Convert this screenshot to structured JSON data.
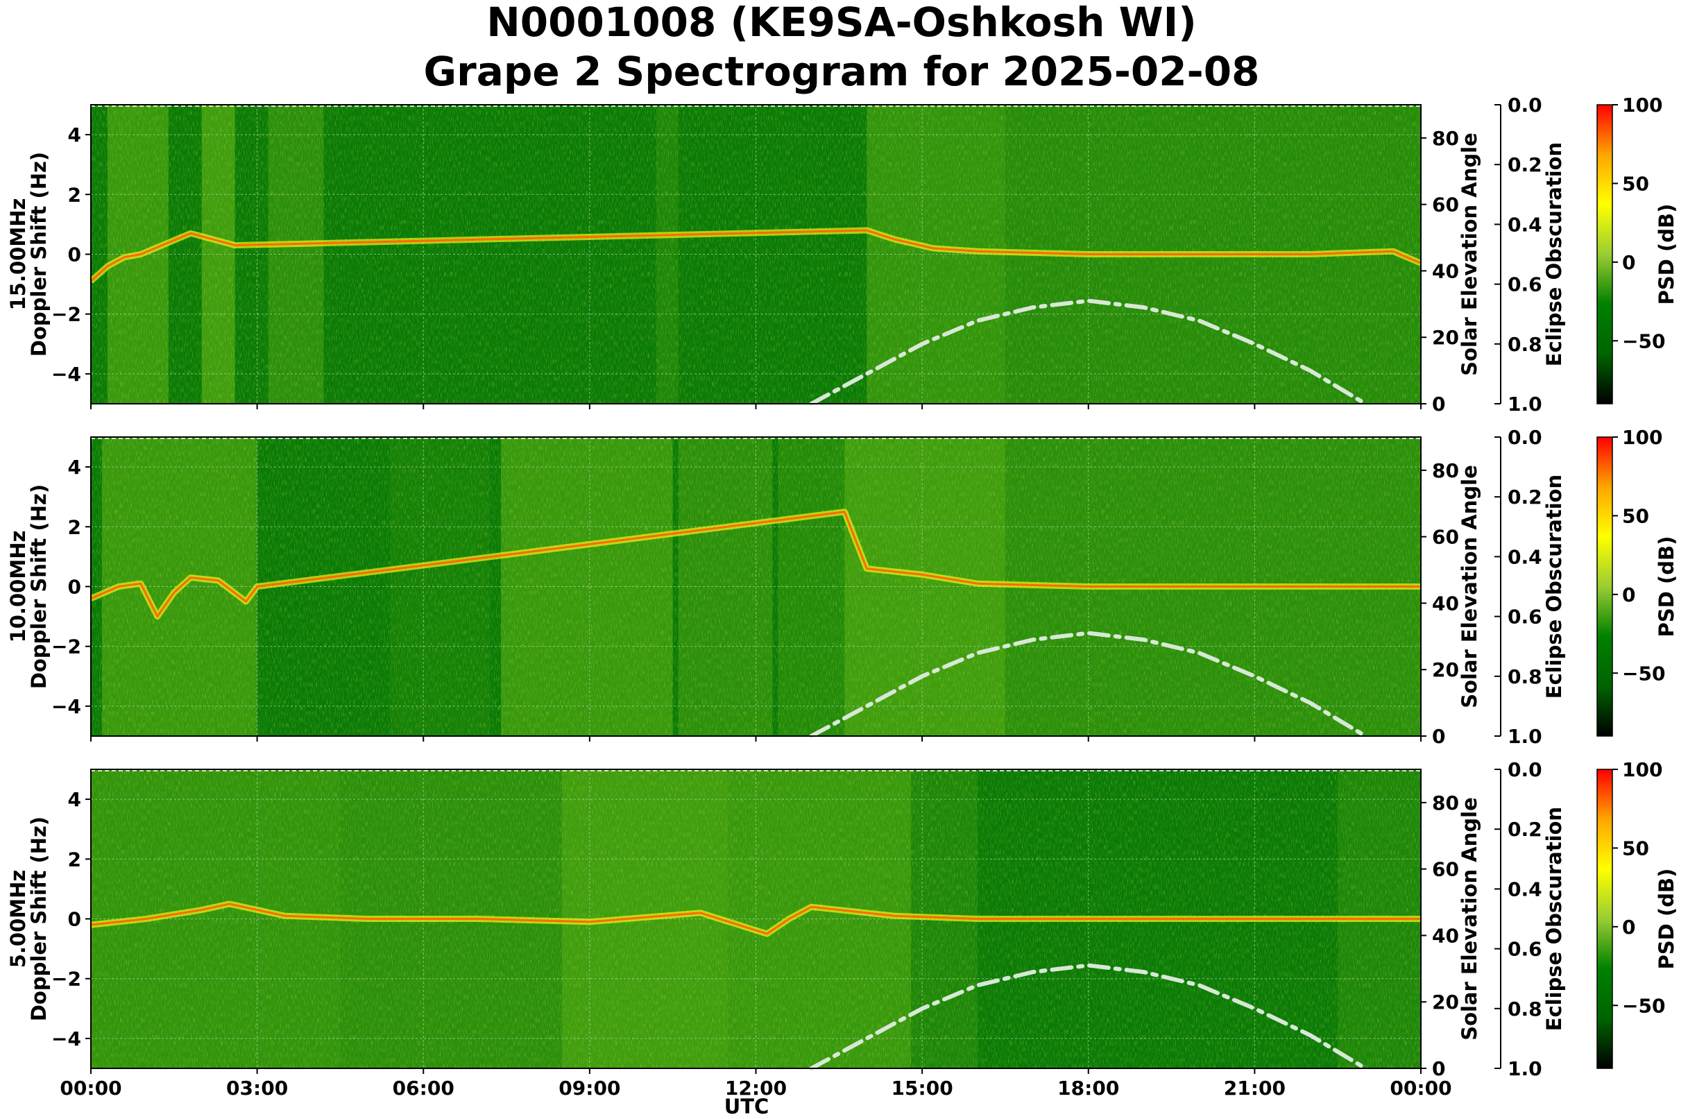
{
  "title": {
    "line1": "N0001008 (KE9SA-Oshkosh WI)",
    "line2": "Grape 2 Spectrogram for 2025-02-08"
  },
  "x_axis": {
    "label": "UTC",
    "ticks": [
      "00:00",
      "03:00",
      "06:00",
      "09:00",
      "12:00",
      "15:00",
      "18:00",
      "21:00",
      "00:00"
    ]
  },
  "y_left_ticks": [
    "4",
    "2",
    "0",
    "−2",
    "−4"
  ],
  "y_right_label": "Solar Elevation Angle",
  "y_right_ticks": [
    "80",
    "60",
    "40",
    "20",
    "0"
  ],
  "eclipse": {
    "label": "Eclipse Obscuration",
    "ticks": [
      "0.0",
      "0.2",
      "0.4",
      "0.6",
      "0.8",
      "1.0"
    ]
  },
  "colorbar": {
    "label": "PSD (dB)",
    "ticks": [
      "100",
      "50",
      "0",
      "−50"
    ],
    "stops": [
      "#000000",
      "#006400",
      "#008000",
      "#9acd32",
      "#ffff00",
      "#ffa500",
      "#ff0000"
    ]
  },
  "panels": [
    {
      "freq_label": "15.00MHz",
      "ylabel": "Doppler Shift (Hz)"
    },
    {
      "freq_label": "10.00MHz",
      "ylabel": "Doppler Shift (Hz)"
    },
    {
      "freq_label": "5.00MHz",
      "ylabel": "Doppler Shift (Hz)"
    }
  ],
  "chart_data": [
    {
      "type": "heatmap",
      "frequency": "15.00MHz",
      "x_hours": [
        0,
        24
      ],
      "ylim": [
        -5,
        5
      ],
      "y2lim": [
        0,
        90
      ],
      "colorbar_range_db": [
        -90,
        100
      ],
      "doppler_trace": {
        "x": [
          0.0,
          0.3,
          0.6,
          0.9,
          1.8,
          2.2,
          2.6,
          14.0,
          14.5,
          15.2,
          16.0,
          18.0,
          20.0,
          22.0,
          23.5,
          24.0
        ],
        "y": [
          -0.9,
          -0.4,
          -0.1,
          0.0,
          0.7,
          0.5,
          0.3,
          0.8,
          0.5,
          0.2,
          0.1,
          0.0,
          0.0,
          0.0,
          0.1,
          -0.3
        ]
      },
      "solar_elevation": {
        "x": [
          13.0,
          14.0,
          15.0,
          16.0,
          17.0,
          18.0,
          19.0,
          20.0,
          21.0,
          22.0,
          23.0
        ],
        "y": [
          0,
          9,
          18,
          25,
          29,
          31,
          29,
          25,
          18,
          10,
          0
        ]
      },
      "grid": true
    },
    {
      "type": "heatmap",
      "frequency": "10.00MHz",
      "x_hours": [
        0,
        24
      ],
      "ylim": [
        -5,
        5
      ],
      "y2lim": [
        0,
        90
      ],
      "colorbar_range_db": [
        -90,
        100
      ],
      "doppler_trace": {
        "x": [
          0.0,
          0.5,
          0.9,
          1.2,
          1.5,
          1.8,
          2.3,
          2.8,
          3.0,
          13.6,
          14.0,
          15.0,
          16.0,
          18.0,
          20.0,
          22.0,
          24.0
        ],
        "y": [
          -0.4,
          0.0,
          0.1,
          -1.0,
          -0.2,
          0.3,
          0.2,
          -0.5,
          0.0,
          2.5,
          0.6,
          0.4,
          0.1,
          0.0,
          0.0,
          0.0,
          0.0
        ]
      },
      "solar_elevation": {
        "x": [
          13.0,
          14.0,
          15.0,
          16.0,
          17.0,
          18.0,
          19.0,
          20.0,
          21.0,
          22.0,
          23.0
        ],
        "y": [
          0,
          9,
          18,
          25,
          29,
          31,
          29,
          25,
          18,
          10,
          0
        ]
      },
      "grid": true
    },
    {
      "type": "heatmap",
      "frequency": "5.00MHz",
      "x_hours": [
        0,
        24
      ],
      "ylim": [
        -5,
        5
      ],
      "y2lim": [
        0,
        90
      ],
      "colorbar_range_db": [
        -90,
        100
      ],
      "doppler_trace": {
        "x": [
          0.0,
          1.0,
          2.0,
          2.5,
          3.5,
          5.0,
          7.0,
          9.0,
          11.0,
          12.2,
          12.6,
          13.0,
          13.5,
          14.5,
          16.0,
          20.0,
          24.0
        ],
        "y": [
          -0.2,
          0.0,
          0.3,
          0.5,
          0.1,
          0.0,
          0.0,
          -0.1,
          0.2,
          -0.5,
          0.0,
          0.4,
          0.3,
          0.1,
          0.0,
          0.0,
          0.0
        ]
      },
      "solar_elevation": {
        "x": [
          13.0,
          14.0,
          15.0,
          16.0,
          17.0,
          18.0,
          19.0,
          20.0,
          21.0,
          22.0,
          23.0
        ],
        "y": [
          0,
          9,
          18,
          25,
          29,
          31,
          29,
          25,
          18,
          10,
          0
        ]
      },
      "grid": true
    }
  ]
}
